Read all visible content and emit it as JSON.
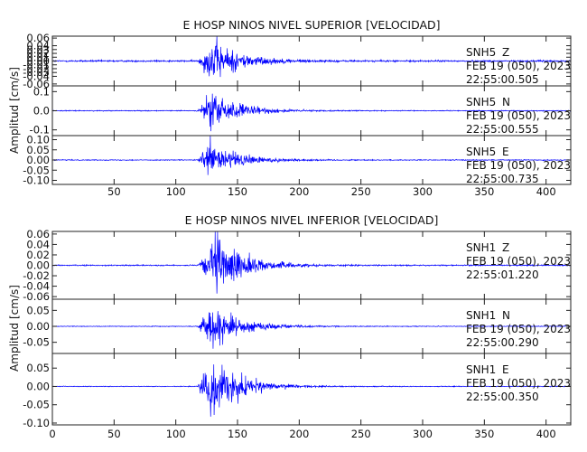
{
  "chart_data": [
    {
      "type": "line",
      "title": "E HOSP NINOS NIVEL SUPERIOR [VELOCIDAD]",
      "ylabel": "Amplitud [cm/s]",
      "xlabel": "",
      "xlim": [
        0,
        420
      ],
      "x_ticks": [
        50,
        100,
        150,
        200,
        250,
        300,
        350,
        400
      ],
      "grid": false,
      "line_color": "#0000ff",
      "traces": [
        {
          "station": "SNH5",
          "component": "Z",
          "date": "FEB 19 (050), 2023",
          "time": "22:55:00.505",
          "ylim": [
            -0.065,
            0.065
          ],
          "y_ticks": [
            0.06,
            0.04,
            0.03,
            0.02,
            0.01,
            0.0,
            -0.01,
            -0.02,
            -0.03,
            -0.04,
            -0.06
          ],
          "y_tick_labels": [
            "0.06",
            "0.04",
            "0.03",
            "0.02",
            "0.01",
            "0.00",
            "-0.01",
            "-0.02",
            "-0.03",
            "-0.04",
            "-0.06"
          ],
          "onset_s": 118,
          "peak_s": 130,
          "peak_amplitude": 0.06,
          "noise_amplitude": 0.002
        },
        {
          "station": "SNH5",
          "component": "N",
          "date": "FEB 19 (050), 2023",
          "time": "22:55:00.555",
          "ylim": [
            -0.13,
            0.13
          ],
          "y_ticks": [
            0.1,
            0.0,
            -0.1
          ],
          "y_tick_labels": [
            "0.1",
            "0.0",
            "-0.1"
          ],
          "onset_s": 118,
          "peak_s": 128,
          "peak_amplitude": 0.11,
          "noise_amplitude": 0.002
        },
        {
          "station": "SNH5",
          "component": "E",
          "date": "FEB 19 (050), 2023",
          "time": "22:55:00.735",
          "ylim": [
            -0.12,
            0.12
          ],
          "y_ticks": [
            0.1,
            0.05,
            0.0,
            -0.05,
            -0.1
          ],
          "y_tick_labels": [
            "0.10",
            "0.05",
            "0.00",
            "-0.05",
            "-0.10"
          ],
          "onset_s": 118,
          "peak_s": 128,
          "peak_amplitude": 0.1,
          "noise_amplitude": 0.002
        }
      ]
    },
    {
      "type": "line",
      "title": "E HOSP NINOS NIVEL INFERIOR [VELOCIDAD]",
      "ylabel": "Amplitud [cm/s]",
      "xlabel": "",
      "xlim": [
        0,
        420
      ],
      "x_ticks": [
        0,
        50,
        100,
        150,
        200,
        250,
        300,
        350,
        400
      ],
      "grid": false,
      "line_color": "#0000ff",
      "traces": [
        {
          "station": "SNH1",
          "component": "Z",
          "date": "FEB 19 (050), 2023",
          "time": "22:55:01.220",
          "ylim": [
            -0.065,
            0.065
          ],
          "y_ticks": [
            0.06,
            0.04,
            0.02,
            0.0,
            -0.02,
            -0.04,
            -0.06
          ],
          "y_tick_labels": [
            "0.06",
            "0.04",
            "0.02",
            "0.00",
            "-0.02",
            "-0.04",
            "-0.06"
          ],
          "onset_s": 118,
          "peak_s": 133,
          "peak_amplitude": 0.06,
          "noise_amplitude": 0.001
        },
        {
          "station": "SNH1",
          "component": "N",
          "date": "FEB 19 (050), 2023",
          "time": "22:55:00.290",
          "ylim": [
            -0.085,
            0.085
          ],
          "y_ticks": [
            0.05,
            0.0,
            -0.05
          ],
          "y_tick_labels": [
            "0.05",
            "0.00",
            "-0.05"
          ],
          "onset_s": 118,
          "peak_s": 128,
          "peak_amplitude": 0.08,
          "noise_amplitude": 0.001
        },
        {
          "station": "SNH1",
          "component": "E",
          "date": "FEB 19 (050), 2023",
          "time": "22:55:00.350",
          "ylim": [
            -0.105,
            0.09
          ],
          "y_ticks": [
            0.05,
            0.0,
            -0.05,
            -0.1
          ],
          "y_tick_labels": [
            "0.05",
            "0.00",
            "-0.05",
            "-0.10"
          ],
          "onset_s": 118,
          "peak_s": 128,
          "peak_amplitude": 0.09,
          "noise_amplitude": 0.001
        }
      ]
    }
  ]
}
